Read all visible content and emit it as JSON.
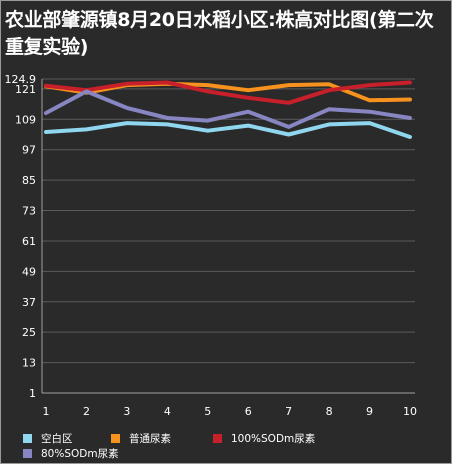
{
  "chart_data": {
    "type": "line",
    "title": "农业部肇源镇8月20日水稻小区:株高对比图(第二次重复实验)",
    "x": [
      1,
      2,
      3,
      4,
      5,
      6,
      7,
      8,
      9,
      10
    ],
    "y_ticks": [
      1,
      13,
      25,
      37,
      49,
      61,
      73,
      85,
      97,
      109,
      121,
      124.9
    ],
    "ylim": [
      1,
      124.9
    ],
    "grid": true,
    "legend_position": "bottom",
    "series": [
      {
        "name": "空白区",
        "color": "#8fd6ee",
        "values": [
          104,
          105,
          107.5,
          107,
          104.5,
          106.5,
          103,
          107,
          107.5,
          102
        ]
      },
      {
        "name": "普通尿素",
        "color": "#f7921e",
        "values": [
          122,
          119.5,
          122.5,
          123,
          122.5,
          120.5,
          122.5,
          122.8,
          116.5,
          116.8
        ]
      },
      {
        "name": "100%SODm尿素",
        "color": "#c8202a",
        "values": [
          122.2,
          120.5,
          123,
          123.5,
          120,
          117.5,
          115.5,
          120.5,
          122.5,
          123.5
        ]
      },
      {
        "name": "80%SODm尿素",
        "color": "#8886c2",
        "values": [
          111.5,
          120,
          113.5,
          109.5,
          108.5,
          112,
          106,
          113,
          112,
          109.5
        ]
      }
    ]
  }
}
